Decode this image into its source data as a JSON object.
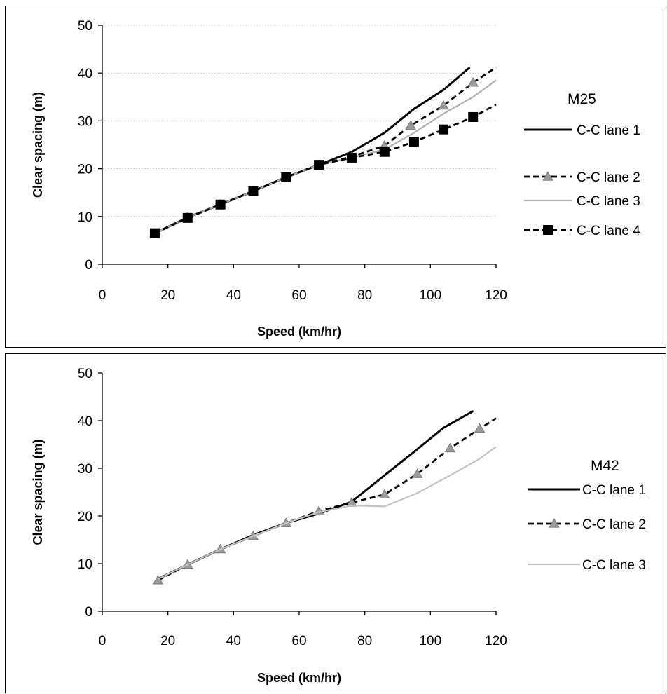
{
  "chart_data": [
    {
      "type": "line",
      "title": "",
      "xlabel": "Speed (km/hr)",
      "ylabel": "Clear spacing (m)",
      "xlim": [
        0,
        120
      ],
      "ylim": [
        0,
        50
      ],
      "xticks": [
        "0",
        "20",
        "40",
        "60",
        "80",
        "100",
        "120"
      ],
      "yticks": [
        "0",
        "10",
        "20",
        "30",
        "40",
        "50"
      ],
      "grid": "horizontal",
      "legend_title": "M25",
      "legend_position": "right",
      "series": [
        {
          "name": "C-C  lane 1",
          "color": "#000000",
          "style": "solid",
          "marker": "none",
          "x": [
            16,
            26,
            36,
            46,
            56,
            66,
            76,
            86,
            95,
            104,
            112
          ],
          "y": [
            6.5,
            9.8,
            12.5,
            15.3,
            18.2,
            20.8,
            23.5,
            27.5,
            32.5,
            36.5,
            41.2
          ]
        },
        {
          "name": "C-C lane 2",
          "color": "#000000",
          "style": "dashed",
          "marker": "triangle",
          "x": [
            16,
            26,
            36,
            46,
            56,
            66,
            76,
            86,
            94,
            104,
            113,
            120
          ],
          "y": [
            6.5,
            9.8,
            12.5,
            15.3,
            18.2,
            20.8,
            22.5,
            24.8,
            29.0,
            33.2,
            38.0,
            41.2
          ]
        },
        {
          "name": "C-C lane 3",
          "color": "#b3b3b3",
          "style": "solid",
          "marker": "none",
          "x": [
            16,
            26,
            36,
            46,
            56,
            66,
            76,
            86,
            95,
            104,
            113,
            120
          ],
          "y": [
            6.5,
            9.8,
            12.5,
            15.3,
            18.2,
            20.8,
            22.3,
            24.0,
            27.5,
            31.5,
            35.0,
            38.5
          ]
        },
        {
          "name": "C-C lane 4",
          "color": "#000000",
          "style": "dashed",
          "marker": "square",
          "x": [
            16,
            26,
            36,
            46,
            56,
            66,
            76,
            86,
            95,
            104,
            113,
            120
          ],
          "y": [
            6.5,
            9.7,
            12.5,
            15.3,
            18.2,
            20.8,
            22.3,
            23.5,
            25.6,
            28.2,
            30.8,
            33.4
          ]
        }
      ]
    },
    {
      "type": "line",
      "title": "",
      "xlabel": "Speed (km/hr)",
      "ylabel": "Clear spacing (m)",
      "xlim": [
        0,
        120
      ],
      "ylim": [
        0,
        50
      ],
      "xticks": [
        "0",
        "20",
        "40",
        "60",
        "80",
        "100",
        "120"
      ],
      "yticks": [
        "0",
        "10",
        "20",
        "30",
        "40",
        "50"
      ],
      "grid": "none",
      "legend_title": "M42",
      "legend_position": "right",
      "series": [
        {
          "name": "C-C lane 1",
          "color": "#000000",
          "style": "solid",
          "marker": "none",
          "x": [
            17,
            26,
            36,
            46,
            56,
            66,
            76,
            86,
            96,
            104,
            113
          ],
          "y": [
            6.8,
            9.8,
            13.0,
            16.0,
            18.5,
            20.5,
            23.0,
            28.5,
            34.0,
            38.5,
            42.0
          ]
        },
        {
          "name": "C-C lane 2",
          "color": "#000000",
          "style": "dashed",
          "marker": "triangle",
          "x": [
            17,
            26,
            36,
            46,
            56,
            66,
            76,
            86,
            96,
            106,
            115,
            120
          ],
          "y": [
            6.5,
            9.8,
            13.0,
            15.8,
            18.5,
            21.0,
            22.8,
            24.5,
            28.8,
            34.2,
            38.3,
            40.5
          ]
        },
        {
          "name": "C-C lane 3",
          "color": "#c4c4c4",
          "style": "solid",
          "marker": "none",
          "x": [
            17,
            26,
            36,
            46,
            56,
            66,
            76,
            86,
            96,
            106,
            115,
            120
          ],
          "y": [
            6.8,
            9.8,
            13.0,
            15.8,
            18.5,
            20.8,
            22.2,
            22.0,
            24.8,
            28.5,
            32.0,
            34.5
          ]
        }
      ]
    }
  ]
}
